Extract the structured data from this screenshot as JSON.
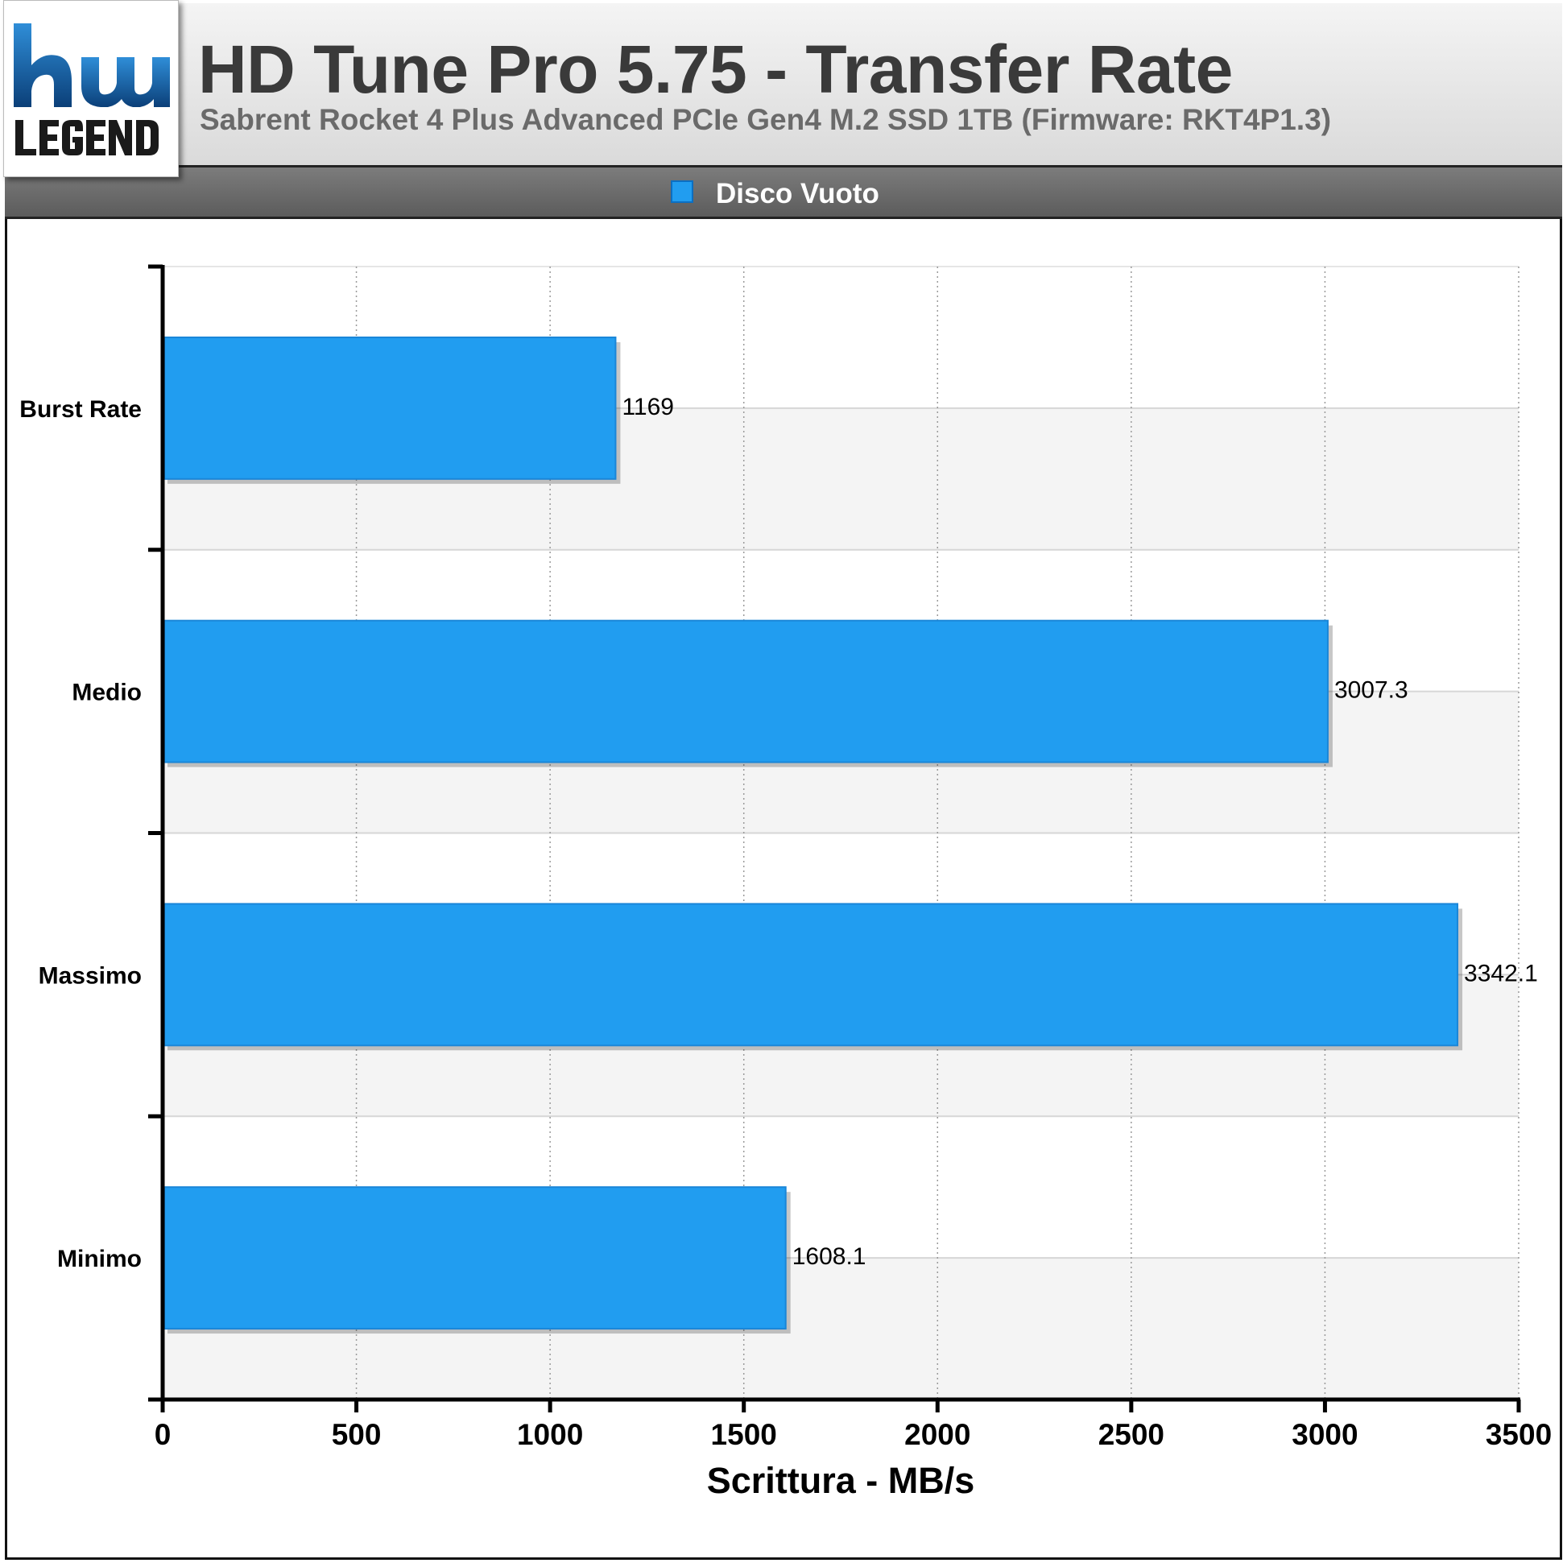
{
  "header": {
    "logo_text": "hwLEGEND",
    "title": "HD Tune Pro 5.75 - Transfer Rate",
    "subtitle": "Sabrent Rocket 4 Plus Advanced PCIe Gen4 M.2 SSD 1TB (Firmware: RKT4P1.3)"
  },
  "legend": {
    "label": "Disco Vuoto",
    "color": "#219df0"
  },
  "chart_data": {
    "type": "bar",
    "orientation": "horizontal",
    "title": "HD Tune Pro 5.75 - Transfer Rate",
    "subtitle": "Sabrent Rocket 4 Plus Advanced PCIe Gen4 M.2 SSD 1TB (Firmware: RKT4P1.3)",
    "categories": [
      "Burst Rate",
      "Medio",
      "Massimo",
      "Minimo"
    ],
    "series": [
      {
        "name": "Disco Vuoto",
        "values": [
          1169,
          3007.3,
          3342.1,
          1608.1
        ],
        "labels": [
          "1169",
          "3007.3",
          "3342.1",
          "1608.1"
        ],
        "color": "#219df0"
      }
    ],
    "xlabel": "Scrittura - MB/s",
    "ylabel": "",
    "xlim": [
      0,
      3500
    ],
    "xticks": [
      0,
      500,
      1000,
      1500,
      2000,
      2500,
      3000,
      3500
    ],
    "grid": true,
    "legend_position": "top-center"
  }
}
